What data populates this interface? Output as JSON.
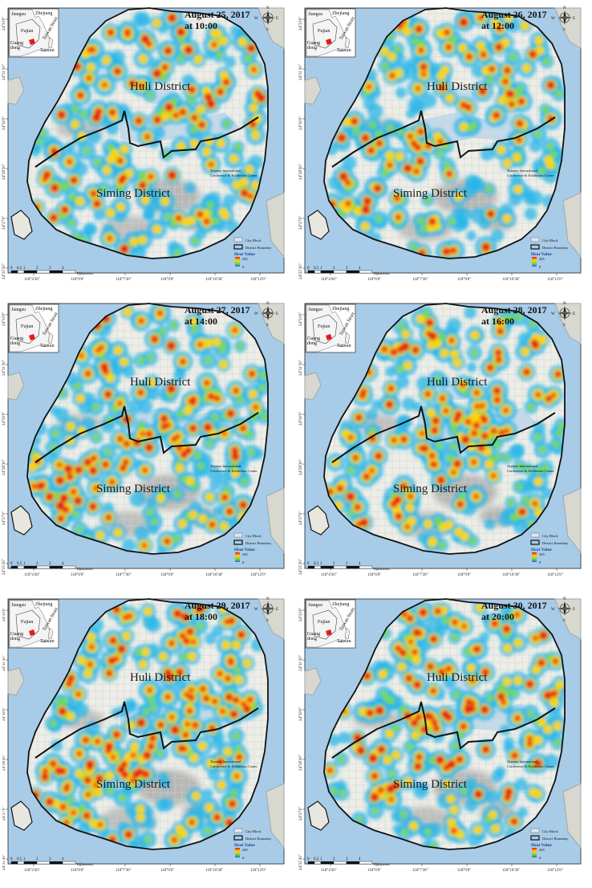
{
  "panels": [
    {
      "date": "August 25, 2017",
      "time": "at 10:00"
    },
    {
      "date": "August 26, 2017",
      "time": "at 12:00"
    },
    {
      "date": "August 27, 2017",
      "time": "at 14:00"
    },
    {
      "date": "August 28, 2017",
      "time": "at 16:00"
    },
    {
      "date": "August 29, 2017",
      "time": "at 18:00"
    },
    {
      "date": "August 30, 2017",
      "time": "at 20:00"
    }
  ],
  "districts": {
    "north": "Huli District",
    "south": "Siming District"
  },
  "landmark": {
    "line1": "Xiamen International",
    "line2": "Conference & Exhibition Center"
  },
  "longitude_ticks": [
    "118°4'30\"",
    "118°6'0\"",
    "118°7'30\"",
    "118°9'0\"",
    "118°10'30\"",
    "118°12'0\""
  ],
  "latitude_ticks": [
    "24°33'0\"",
    "24°31'30\"",
    "24°30'0\"",
    "24°28'30\"",
    "24°27'0\"",
    "24°25'30\""
  ],
  "inset_labels": {
    "jiangsu": "Jiangsu",
    "zhejiang": "Zhejiang",
    "fujian": "Fujian",
    "guangdong_1": "Guang",
    "guangdong_2": "dong",
    "taiwan": "Taiwan",
    "strait": "Taiwan Strait"
  },
  "compass": {
    "n": "N",
    "s": "S",
    "e": "E",
    "w": "W"
  },
  "legend": {
    "city_block": "City Block",
    "district_boundary": "District Boundary",
    "heat_value": "Heat Value",
    "max": "205",
    "min": "0"
  },
  "scalebar": {
    "ticks": [
      "0",
      "0.5",
      "1",
      "2",
      "3",
      "4"
    ],
    "unit": "Kilometers"
  },
  "colors": {
    "sea": "#a8cbe8",
    "land": "#eeede6",
    "grid": "#c9d4e0",
    "boundary": "#111111",
    "hot": "#e41a1c",
    "warm": "#ffd400",
    "mild": "#7ddc3a",
    "cool": "#28b6e8",
    "inset_highlight": "#e41a1c"
  }
}
